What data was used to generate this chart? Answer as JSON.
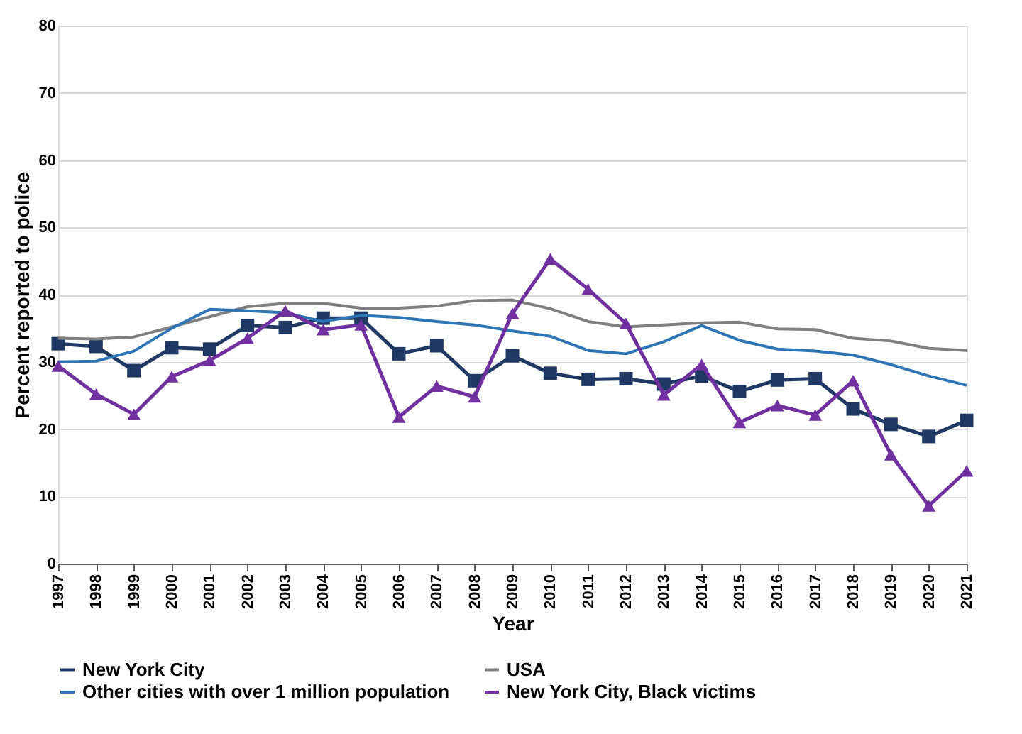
{
  "chart_data": {
    "type": "line",
    "xlabel": "Year",
    "ylabel": "Percent reported to police",
    "x": [
      1997,
      1998,
      1999,
      2000,
      2001,
      2002,
      2003,
      2004,
      2005,
      2006,
      2007,
      2008,
      2009,
      2010,
      2011,
      2012,
      2013,
      2014,
      2015,
      2016,
      2017,
      2018,
      2019,
      2020,
      2021
    ],
    "xlim": [
      1997,
      2021
    ],
    "xticks": [
      1997,
      1998,
      1999,
      2000,
      2001,
      2002,
      2003,
      2004,
      2005,
      2006,
      2007,
      2008,
      2009,
      2010,
      2011,
      2012,
      2013,
      2014,
      2015,
      2016,
      2017,
      2018,
      2019,
      2020,
      2021
    ],
    "ylim": [
      0,
      80
    ],
    "yticks": [
      0,
      10,
      20,
      30,
      40,
      50,
      60,
      70,
      80
    ],
    "grid": "y",
    "legend": "bottom",
    "series": [
      {
        "name": "New York City",
        "color": "#1f3864",
        "marker": "square",
        "values": [
          32.7,
          32.3,
          28.7,
          32.1,
          31.9,
          35.4,
          35.1,
          36.5,
          36.5,
          31.2,
          32.4,
          27.2,
          30.9,
          28.3,
          27.4,
          27.5,
          26.7,
          27.9,
          25.6,
          27.3,
          27.5,
          23.0,
          20.7,
          18.9,
          21.3
        ]
      },
      {
        "name": "USA",
        "color": "#7f7f7f",
        "marker": "none",
        "values": [
          33.5,
          33.4,
          33.7,
          35.2,
          36.7,
          38.2,
          38.7,
          38.7,
          38.0,
          38.0,
          38.3,
          39.1,
          39.2,
          37.9,
          36.0,
          35.2,
          35.5,
          35.8,
          35.9,
          34.9,
          34.8,
          33.5,
          33.1,
          32.0,
          31.7
        ]
      },
      {
        "name": "Other cities with over 1 million population",
        "color": "#2e75b6",
        "marker": "none",
        "values": [
          30.0,
          30.1,
          31.6,
          35.0,
          37.8,
          37.6,
          37.3,
          36.0,
          36.9,
          36.6,
          36.0,
          35.5,
          34.6,
          33.8,
          31.7,
          31.2,
          33.0,
          35.4,
          33.2,
          31.9,
          31.6,
          31.0,
          29.6,
          27.9,
          26.5
        ]
      },
      {
        "name": "New York City, Black victims",
        "color": "#7030a0",
        "marker": "triangle",
        "values": [
          29.4,
          25.2,
          22.2,
          27.8,
          30.2,
          33.5,
          37.6,
          34.8,
          35.5,
          21.8,
          26.4,
          24.8,
          37.2,
          45.3,
          40.8,
          35.7,
          25.1,
          29.6,
          21.0,
          23.5,
          22.1,
          27.2,
          16.2,
          8.6,
          13.8
        ]
      }
    ]
  }
}
